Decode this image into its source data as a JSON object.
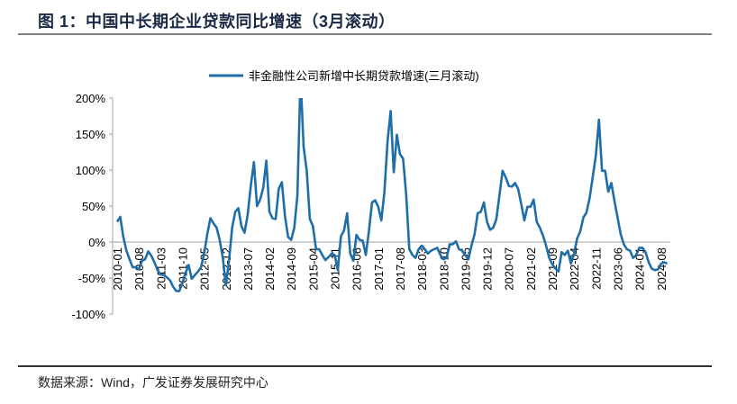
{
  "title": "图 1：中国中长期企业贷款同比增速（3月滚动）",
  "source": "数据来源：Wind，广发证券发展研究中心",
  "colors": {
    "series": "#1f6ea8",
    "axis": "#a0a0a0"
  },
  "chart_data": {
    "type": "line",
    "title": "",
    "xlabel": "",
    "ylabel": "",
    "ylim": [
      -100,
      200
    ],
    "grid": false,
    "legend_placement": "top-center",
    "y_ticks": [
      "200%",
      "150%",
      "100%",
      "50%",
      "0%",
      "-50%",
      "-100%"
    ],
    "y_tick_values": [
      200,
      150,
      100,
      50,
      0,
      -50,
      -100
    ],
    "x_tick_labels": [
      "2010-01",
      "2010-08",
      "2011-03",
      "2011-10",
      "2012-05",
      "2012-12",
      "2013-07",
      "2014-02",
      "2014-09",
      "2015-04",
      "2015-11",
      "2016-06",
      "2017-01",
      "2017-08",
      "2018-03",
      "2018-10",
      "2019-05",
      "2019-12",
      "2020-07",
      "2021-02",
      "2021-09",
      "2022-04",
      "2022-11",
      "2023-06",
      "2024-01",
      "2024-08"
    ],
    "x": [
      "2010-01",
      "2010-02",
      "2010-03",
      "2010-04",
      "2010-05",
      "2010-06",
      "2010-07",
      "2010-08",
      "2010-09",
      "2010-10",
      "2010-11",
      "2010-12",
      "2011-01",
      "2011-02",
      "2011-03",
      "2011-04",
      "2011-05",
      "2011-06",
      "2011-07",
      "2011-08",
      "2011-09",
      "2011-10",
      "2011-11",
      "2011-12",
      "2012-01",
      "2012-02",
      "2012-03",
      "2012-04",
      "2012-05",
      "2012-06",
      "2012-07",
      "2012-08",
      "2012-09",
      "2012-10",
      "2012-11",
      "2012-12",
      "2013-01",
      "2013-02",
      "2013-03",
      "2013-04",
      "2013-05",
      "2013-06",
      "2013-07",
      "2013-08",
      "2013-09",
      "2013-10",
      "2013-11",
      "2013-12",
      "2014-01",
      "2014-02",
      "2014-03",
      "2014-04",
      "2014-05",
      "2014-06",
      "2014-07",
      "2014-08",
      "2014-09",
      "2014-10",
      "2014-11",
      "2014-12",
      "2015-01",
      "2015-02",
      "2015-03",
      "2015-04",
      "2015-05",
      "2015-06",
      "2015-07",
      "2015-08",
      "2015-09",
      "2015-10",
      "2015-11",
      "2015-12",
      "2016-01",
      "2016-02",
      "2016-03",
      "2016-04",
      "2016-05",
      "2016-06",
      "2016-07",
      "2016-08",
      "2016-09",
      "2016-10",
      "2016-11",
      "2016-12",
      "2017-01",
      "2017-02",
      "2017-03",
      "2017-04",
      "2017-05",
      "2017-06",
      "2017-07",
      "2017-08",
      "2017-09",
      "2017-10",
      "2017-11",
      "2017-12",
      "2018-01",
      "2018-02",
      "2018-03",
      "2018-04",
      "2018-05",
      "2018-06",
      "2018-07",
      "2018-08",
      "2018-09",
      "2018-10",
      "2018-11",
      "2018-12",
      "2019-01",
      "2019-02",
      "2019-03",
      "2019-04",
      "2019-05",
      "2019-06",
      "2019-07",
      "2019-08",
      "2019-09",
      "2019-10",
      "2019-11",
      "2019-12",
      "2020-01",
      "2020-02",
      "2020-03",
      "2020-04",
      "2020-05",
      "2020-06",
      "2020-07",
      "2020-08",
      "2020-09",
      "2020-10",
      "2020-11",
      "2020-12",
      "2021-01",
      "2021-02",
      "2021-03",
      "2021-04",
      "2021-05",
      "2021-06",
      "2021-07",
      "2021-08",
      "2021-09",
      "2021-10",
      "2021-11",
      "2021-12",
      "2022-01",
      "2022-02",
      "2022-03",
      "2022-04",
      "2022-05",
      "2022-06",
      "2022-07",
      "2022-08",
      "2022-09",
      "2022-10",
      "2022-11",
      "2022-12",
      "2023-01",
      "2023-02",
      "2023-03",
      "2023-04",
      "2023-05",
      "2023-06",
      "2023-07",
      "2023-08",
      "2023-09",
      "2023-10",
      "2023-11",
      "2023-12",
      "2024-01",
      "2024-02",
      "2024-03",
      "2024-04",
      "2024-05",
      "2024-06",
      "2024-07",
      "2024-08",
      "2024-09",
      "2024-10"
    ],
    "series": [
      {
        "name": "非金融性公司新增中长期贷款增速(三月滚动)",
        "values": [
          28,
          35,
          7,
          -12,
          -24,
          -35,
          -35,
          -38,
          -26,
          -24,
          -13,
          -19,
          -28,
          -39,
          -45,
          -46,
          -49,
          -53,
          -62,
          -68,
          -68,
          -57,
          -43,
          -32,
          -51,
          -46,
          -41,
          -35,
          -16,
          11,
          33,
          26,
          20,
          3,
          -22,
          -60,
          -26,
          20,
          42,
          47,
          22,
          13,
          38,
          78,
          111,
          50,
          59,
          75,
          113,
          42,
          33,
          32,
          74,
          83,
          36,
          7,
          3,
          20,
          65,
          230,
          132,
          99,
          32,
          22,
          -10,
          -10,
          -18,
          -25,
          -21,
          -16,
          -18,
          -39,
          8,
          16,
          40,
          -16,
          -26,
          10,
          3,
          2,
          -18,
          15,
          55,
          58,
          49,
          30,
          70,
          140,
          182,
          97,
          149,
          122,
          116,
          65,
          -10,
          -18,
          -22,
          -10,
          -5,
          -10,
          -16,
          -12,
          -10,
          -8,
          -18,
          -24,
          -22,
          -3,
          -3,
          1,
          -10,
          -12,
          -18,
          -24,
          -5,
          11,
          40,
          42,
          55,
          28,
          17,
          20,
          32,
          65,
          99,
          90,
          78,
          77,
          82,
          74,
          53,
          30,
          49,
          49,
          59,
          28,
          20,
          9,
          -5,
          -22,
          -31,
          -37,
          -41,
          -14,
          -18,
          -12,
          -30,
          -16,
          5,
          15,
          34,
          41,
          61,
          90,
          120,
          170,
          99,
          99,
          70,
          82,
          57,
          34,
          11,
          -3,
          -10,
          -12,
          -22,
          -18,
          -8,
          -8,
          -14,
          -28,
          -37,
          -39,
          -38,
          -30,
          -28,
          -30
        ]
      }
    ]
  }
}
